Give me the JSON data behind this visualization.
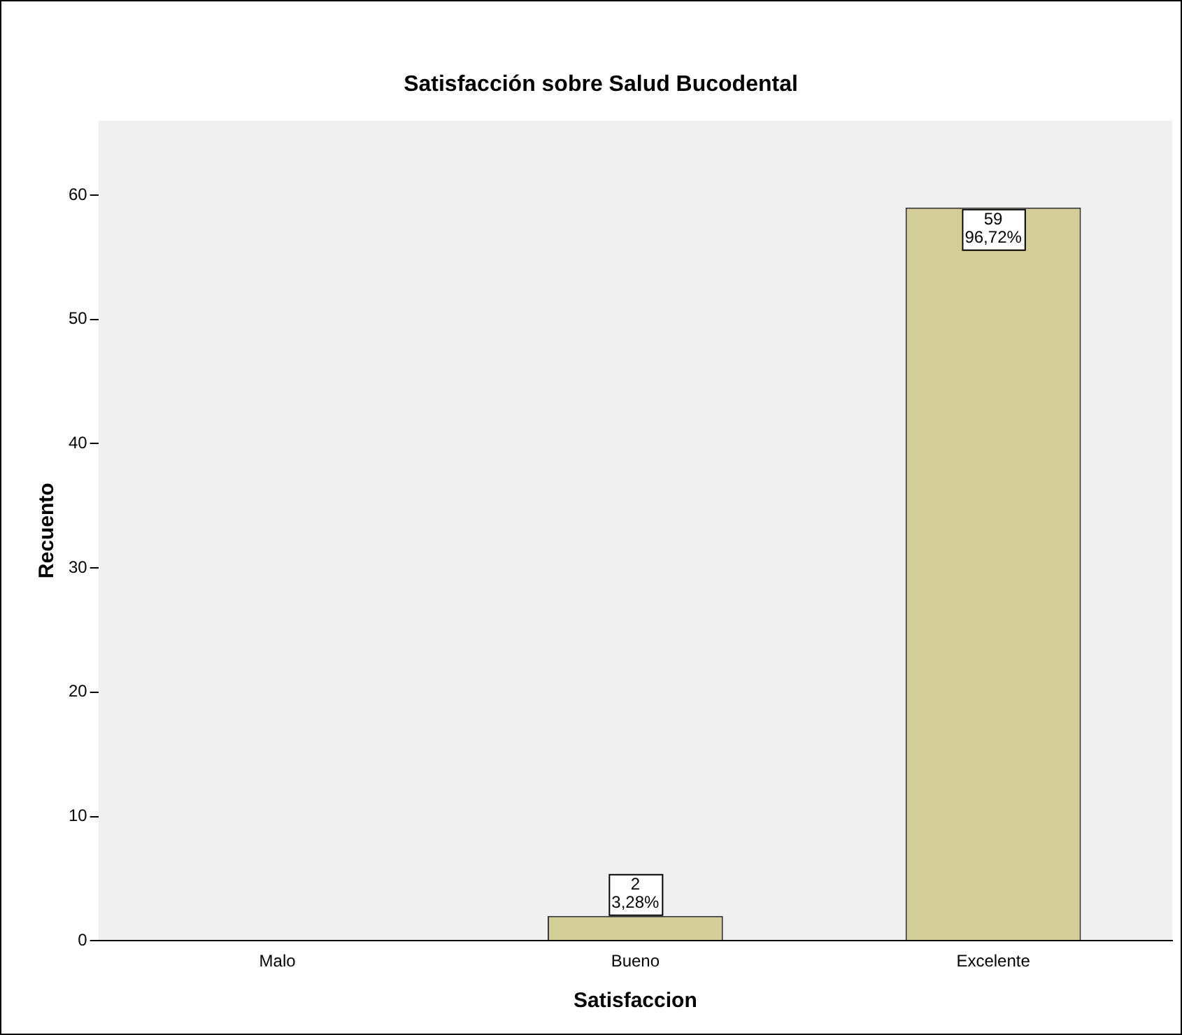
{
  "chart_data": {
    "type": "bar",
    "title": "Satisfacción sobre Salud Bucodental",
    "xlabel": "Satisfaccion",
    "ylabel": "Recuento",
    "categories": [
      "Malo",
      "Bueno",
      "Excelente"
    ],
    "values": [
      0,
      2,
      59
    ],
    "color": "#d3ce97",
    "value_labels": [
      null,
      "2\n3,28%",
      "59\n96,72%"
    ],
    "ylim": [
      0,
      66
    ],
    "yticks": [
      0,
      10,
      20,
      30,
      40,
      50,
      60
    ],
    "grid": false
  }
}
